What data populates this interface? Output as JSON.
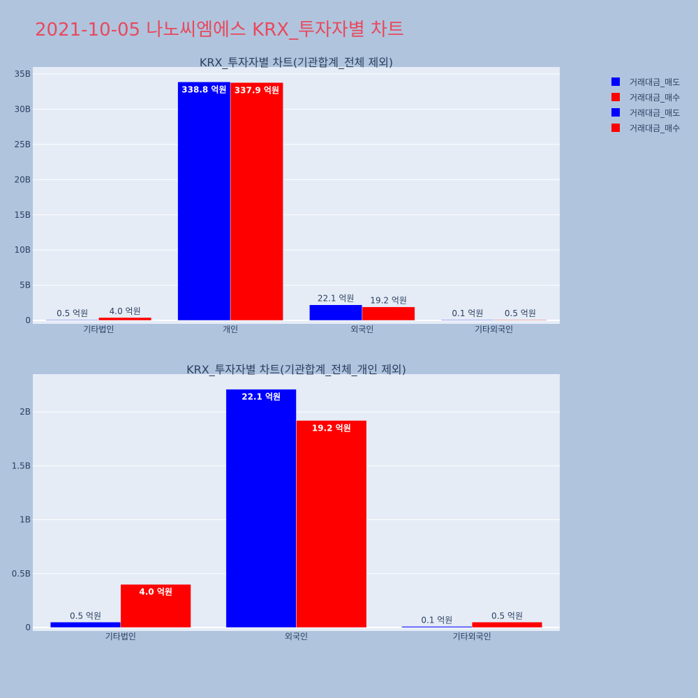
{
  "title": "2021-10-05 나노씨엠에스 KRX_투자자별 차트",
  "colors": {
    "sell": "#0000ff",
    "buy": "#ff0000",
    "plot_bg": "#e5ecf6",
    "page_bg": "#b0c4de",
    "text": "#2a3f5f"
  },
  "legend": [
    {
      "label": "거래대금_매도",
      "color": "#0000ff"
    },
    {
      "label": "거래대금_매수",
      "color": "#ff0000"
    },
    {
      "label": "거래대금_매도",
      "color": "#0000ff"
    },
    {
      "label": "거래대금_매수",
      "color": "#ff0000"
    }
  ],
  "chart_data": [
    {
      "type": "bar",
      "title": "KRX_투자자별 차트(기관합계_전체 제외)",
      "categories": [
        "기타법인",
        "개인",
        "외국인",
        "기타외국인"
      ],
      "series": [
        {
          "name": "거래대금_매도",
          "color": "#0000ff",
          "values": [
            50000000,
            33880000000,
            2210000000,
            10000000
          ],
          "labels": [
            "0.5 억원",
            "338.8 억원",
            "22.1 억원",
            "0.1 억원"
          ]
        },
        {
          "name": "거래대금_매수",
          "color": "#ff0000",
          "values": [
            400000000,
            33790000000,
            1920000000,
            50000000
          ],
          "labels": [
            "4.0 억원",
            "337.9 억원",
            "19.2 억원",
            "0.5 억원"
          ]
        }
      ],
      "ylim": [
        0,
        36000000000
      ],
      "yticks": [
        0,
        5000000000,
        10000000000,
        15000000000,
        20000000000,
        25000000000,
        30000000000,
        35000000000
      ],
      "ytick_labels": [
        "0",
        "5B",
        "10B",
        "15B",
        "20B",
        "25B",
        "30B",
        "35B"
      ],
      "grid": true
    },
    {
      "type": "bar",
      "title": "KRX_투자자별 차트(기관합계_전체_개인 제외)",
      "categories": [
        "기타법인",
        "외국인",
        "기타외국인"
      ],
      "series": [
        {
          "name": "거래대금_매도",
          "color": "#0000ff",
          "values": [
            50000000,
            2210000000,
            10000000
          ],
          "labels": [
            "0.5 억원",
            "22.1 억원",
            "0.1 억원"
          ]
        },
        {
          "name": "거래대금_매수",
          "color": "#ff0000",
          "values": [
            400000000,
            1920000000,
            50000000
          ],
          "labels": [
            "4.0 억원",
            "19.2 억원",
            "0.5 억원"
          ]
        }
      ],
      "ylim": [
        0,
        2350000000
      ],
      "yticks": [
        0,
        500000000,
        1000000000,
        1500000000,
        2000000000
      ],
      "ytick_labels": [
        "0",
        "0.5B",
        "1B",
        "1.5B",
        "2B"
      ],
      "grid": true
    }
  ]
}
